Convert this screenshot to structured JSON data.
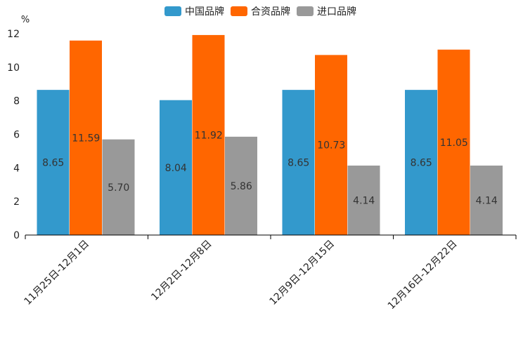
{
  "chart_data": {
    "type": "bar",
    "title": "",
    "unit_label": "%",
    "xlabel": "",
    "ylabel": "",
    "ylim": [
      0,
      12
    ],
    "yticks": [
      0,
      2,
      4,
      6,
      8,
      10,
      12
    ],
    "grid": false,
    "legend_position": "top-center",
    "categories": [
      "11月25日-12月1日",
      "12月2日-12月8日",
      "12月9日-12月15日",
      "12月16日-12月22日"
    ],
    "series": [
      {
        "name": "中国品牌",
        "color": "#3399cc",
        "values": [
          8.65,
          8.04,
          8.65,
          8.65
        ],
        "labels": [
          "8.65",
          "8.04",
          "8.65",
          "8.65"
        ]
      },
      {
        "name": "合资品牌",
        "color": "#ff6600",
        "values": [
          11.59,
          11.92,
          10.73,
          11.05
        ],
        "labels": [
          "11.59",
          "11.92",
          "10.73",
          "11.05"
        ]
      },
      {
        "name": "进口品牌",
        "color": "#999999",
        "values": [
          5.7,
          5.86,
          4.14,
          4.14
        ],
        "labels": [
          "5.70",
          "5.86",
          "4.14",
          "4.14"
        ]
      }
    ]
  }
}
